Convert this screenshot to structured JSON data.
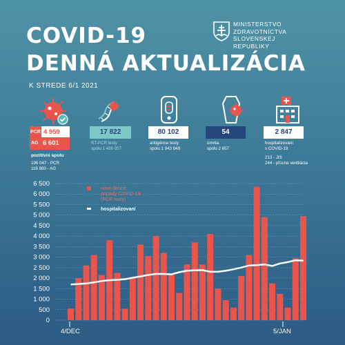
{
  "header": {
    "title_line1": "COVID-19",
    "title_line2": "DENNÁ AKTUALIZÁCIA",
    "ministry": [
      "MINISTERSTVO",
      "ZDRAVOTNÍCTVA",
      "SLOVENSKEJ REPUBLIKY"
    ],
    "date": "K STREDE 6/1 2021"
  },
  "stats": {
    "positive": {
      "pcr_label": "PCR",
      "pcr_value": "4 959",
      "ag_label": "AG",
      "ag_value": "6 601",
      "label": "pozitívni spolu",
      "detail_pcr": "196 047 - PCR",
      "detail_ag": "116 880 - AG"
    },
    "rtpcr": {
      "value": "17 822",
      "label_line1": "RT-PCR testy",
      "label_line2": "spolu 1 488 057"
    },
    "antigen": {
      "value": "80 102",
      "label_line1": "antigénne testy",
      "label_line2": "spolu 1 943 849"
    },
    "deaths": {
      "value": "54",
      "label_line1": "úmrtia",
      "label_line2": "spolu 2 657"
    },
    "hospital": {
      "value": "2 847",
      "label_line1": "hospitalizovaní",
      "label_line2": "s COVID-19",
      "detail_jis": "213 - JIS",
      "detail_vent": "244 - pľúcna ventilácia"
    }
  },
  "colors": {
    "bar": "#e9544b",
    "line": "#ffffff",
    "deaths": "#26457a",
    "rtpcr": "#7ec9c7"
  },
  "icons": [
    "virus-icon",
    "dna-icon",
    "test-kit-icon",
    "coffin-icon",
    "hospital-icon",
    "slovak-crest-icon"
  ],
  "chart_data": {
    "type": "bar",
    "x_start_label": "4/DEC",
    "x_end_label": "5/JAN",
    "ylim": [
      0,
      6500
    ],
    "yticks": [
      "0",
      "500",
      "1 000",
      "1 500",
      "2 000",
      "2 500",
      "3 000",
      "3 500",
      "4 000",
      "4 500",
      "5 000",
      "5 500",
      "6 000",
      "6 500"
    ],
    "grid": true,
    "legend_position": "top-left",
    "series": [
      {
        "name": "nové denné prípady COVID-19 (PCR testy)",
        "type": "bar",
        "values": [
          550,
          2000,
          2600,
          3100,
          2150,
          3800,
          2250,
          550,
          2000,
          3600,
          3050,
          4000,
          3200,
          2150,
          1300,
          2650,
          3700,
          2650,
          4100,
          1500,
          950,
          600,
          2100,
          3100,
          6350,
          4900,
          1750,
          1250,
          600,
          2950,
          4950
        ]
      },
      {
        "name": "hospitalizovaní",
        "type": "line",
        "values": [
          1700,
          1720,
          1750,
          1800,
          1860,
          1900,
          1920,
          1950,
          2020,
          2080,
          2150,
          2200,
          2200,
          2180,
          2280,
          2350,
          2370,
          2380,
          2300,
          2300,
          2350,
          2420,
          2500,
          2600,
          2620,
          2650,
          2580,
          2700,
          2760,
          2850,
          2830
        ]
      }
    ]
  }
}
